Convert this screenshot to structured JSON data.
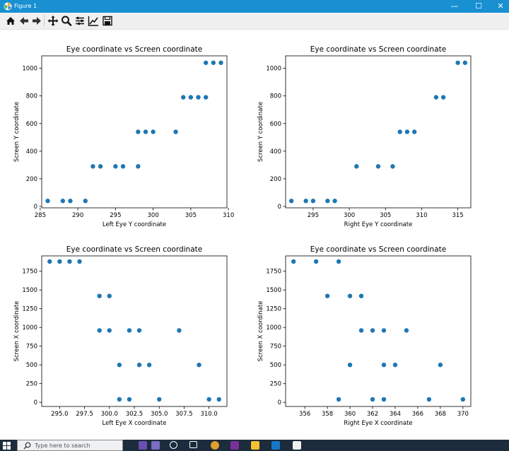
{
  "window": {
    "title": "Figure 1",
    "minimize": "—",
    "maximize": "☐",
    "close": "✕"
  },
  "toolbar": {
    "buttons": [
      "home-icon",
      "back-icon",
      "forward-icon",
      "pan-icon",
      "zoom-icon",
      "configure-subplots-icon",
      "edit-axis-icon",
      "save-icon"
    ]
  },
  "taskbar": {
    "search_placeholder": "Type here to search"
  },
  "colors": {
    "marker": "#1f77b4",
    "titlebar": "#1890d2",
    "taskbar": "#1c2c3c"
  },
  "chart_data": [
    {
      "type": "scatter",
      "title": "Eye coordinate vs Screen coordinate",
      "xlabel": "Left Eye Y coordinate",
      "ylabel": "Screen Y coordinate",
      "xlim": [
        285.2,
        309.8
      ],
      "ylim": [
        -10,
        1090
      ],
      "xticks": [
        285,
        290,
        295,
        300,
        305,
        310
      ],
      "xticklabels": [
        "285",
        "290",
        "295",
        "300",
        "305",
        "310"
      ],
      "yticks": [
        0,
        200,
        400,
        600,
        800,
        1000
      ],
      "yticklabels": [
        "0",
        "200",
        "400",
        "600",
        "800",
        "1000"
      ],
      "x": [
        286,
        288,
        289,
        291,
        292,
        293,
        295,
        296,
        298,
        298,
        299,
        300,
        303,
        304,
        305,
        306,
        307,
        307,
        308,
        309
      ],
      "y": [
        40,
        40,
        40,
        40,
        290,
        290,
        290,
        290,
        290,
        540,
        540,
        540,
        540,
        790,
        790,
        790,
        790,
        1040,
        1040,
        1040
      ]
    },
    {
      "type": "scatter",
      "title": "Eye coordinate vs Screen coordinate",
      "xlabel": "Right Eye Y coordinate",
      "ylabel": "Screen Y coordinate",
      "xlim": [
        291.2,
        316.8
      ],
      "ylim": [
        -10,
        1090
      ],
      "xticks": [
        295,
        300,
        305,
        310,
        315
      ],
      "xticklabels": [
        "295",
        "300",
        "305",
        "310",
        "315"
      ],
      "yticks": [
        0,
        200,
        400,
        600,
        800,
        1000
      ],
      "yticklabels": [
        "0",
        "200",
        "400",
        "600",
        "800",
        "1000"
      ],
      "x": [
        292,
        294,
        295,
        297,
        298,
        301,
        304,
        306,
        307,
        308,
        309,
        312,
        313,
        315,
        316
      ],
      "y": [
        40,
        40,
        40,
        40,
        40,
        290,
        290,
        290,
        540,
        540,
        540,
        790,
        790,
        1040,
        1040
      ]
    },
    {
      "type": "scatter",
      "title": "Eye coordinate vs Screen coordinate",
      "xlabel": "Left Eye X coordinate",
      "ylabel": "Screen X coordinate",
      "xlim": [
        293.2,
        311.8
      ],
      "ylim": [
        -55,
        1955
      ],
      "xticks": [
        295,
        297.5,
        300,
        302.5,
        305,
        307.5,
        310
      ],
      "xticklabels": [
        "295.0",
        "297.5",
        "300.0",
        "302.5",
        "305.0",
        "307.5",
        "310.0"
      ],
      "yticks": [
        0,
        250,
        500,
        750,
        1000,
        1250,
        1500,
        1750
      ],
      "yticklabels": [
        "0",
        "250",
        "500",
        "750",
        "1000",
        "1250",
        "1500",
        "1750"
      ],
      "x": [
        294,
        295,
        296,
        297,
        299,
        299,
        300,
        300,
        301,
        301,
        302,
        302,
        303,
        303,
        304,
        305,
        307,
        309,
        310,
        311
      ],
      "y": [
        1880,
        1880,
        1880,
        1880,
        1420,
        960,
        1420,
        960,
        500,
        40,
        960,
        40,
        960,
        500,
        500,
        40,
        960,
        500,
        40,
        40
      ]
    },
    {
      "type": "scatter",
      "title": "Eye coordinate vs Screen coordinate",
      "xlabel": "Right Eye X coordinate",
      "ylabel": "Screen X coordinate",
      "xlim": [
        354.3,
        370.7
      ],
      "ylim": [
        -55,
        1955
      ],
      "xticks": [
        356,
        358,
        360,
        362,
        364,
        366,
        368,
        370
      ],
      "xticklabels": [
        "356",
        "358",
        "360",
        "362",
        "364",
        "366",
        "368",
        "370"
      ],
      "yticks": [
        0,
        250,
        500,
        750,
        1000,
        1250,
        1500,
        1750
      ],
      "yticklabels": [
        "0",
        "250",
        "500",
        "750",
        "1000",
        "1250",
        "1500",
        "1750"
      ],
      "x": [
        355,
        357,
        358,
        359,
        359,
        360,
        360,
        361,
        361,
        362,
        362,
        363,
        363,
        363,
        364,
        365,
        367,
        368,
        370
      ],
      "y": [
        1880,
        1880,
        1420,
        1880,
        40,
        1420,
        500,
        1420,
        960,
        960,
        40,
        960,
        500,
        40,
        500,
        960,
        40,
        500,
        40
      ]
    }
  ]
}
